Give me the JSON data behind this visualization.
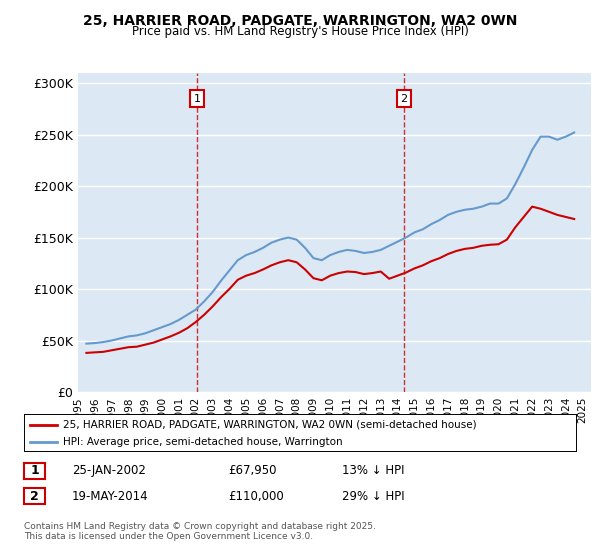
{
  "title": "25, HARRIER ROAD, PADGATE, WARRINGTON, WA2 0WN",
  "subtitle": "Price paid vs. HM Land Registry's House Price Index (HPI)",
  "ylabel": "",
  "ylim": [
    0,
    310000
  ],
  "yticks": [
    0,
    50000,
    100000,
    150000,
    200000,
    250000,
    300000
  ],
  "ytick_labels": [
    "£0",
    "£50K",
    "£100K",
    "£150K",
    "£200K",
    "£250K",
    "£300K"
  ],
  "bg_color": "#dce9f5",
  "plot_bg_color": "#dce9f5",
  "grid_color": "#ffffff",
  "line_color_red": "#cc0000",
  "line_color_blue": "#6699cc",
  "vline_color": "#cc0000",
  "marker1_year": 2002.07,
  "marker2_year": 2014.38,
  "purchase1_label": "1",
  "purchase2_label": "2",
  "legend_red": "25, HARRIER ROAD, PADGATE, WARRINGTON, WA2 0WN (semi-detached house)",
  "legend_blue": "HPI: Average price, semi-detached house, Warrington",
  "table_row1": [
    "1",
    "25-JAN-2002",
    "£67,950",
    "13% ↓ HPI"
  ],
  "table_row2": [
    "2",
    "19-MAY-2014",
    "£110,000",
    "29% ↓ HPI"
  ],
  "footer": "Contains HM Land Registry data © Crown copyright and database right 2025.\nThis data is licensed under the Open Government Licence v3.0.",
  "hpi_data": {
    "years": [
      1995.5,
      1996.0,
      1996.5,
      1997.0,
      1997.5,
      1998.0,
      1998.5,
      1999.0,
      1999.5,
      2000.0,
      2000.5,
      2001.0,
      2001.5,
      2002.0,
      2002.5,
      2003.0,
      2003.5,
      2004.0,
      2004.5,
      2005.0,
      2005.5,
      2006.0,
      2006.5,
      2007.0,
      2007.5,
      2008.0,
      2008.5,
      2009.0,
      2009.5,
      2010.0,
      2010.5,
      2011.0,
      2011.5,
      2012.0,
      2012.5,
      2013.0,
      2013.5,
      2014.0,
      2014.5,
      2015.0,
      2015.5,
      2016.0,
      2016.5,
      2017.0,
      2017.5,
      2018.0,
      2018.5,
      2019.0,
      2019.5,
      2020.0,
      2020.5,
      2021.0,
      2021.5,
      2022.0,
      2022.5,
      2023.0,
      2023.5,
      2024.0,
      2024.5
    ],
    "values": [
      47000,
      47500,
      48500,
      50000,
      52000,
      54000,
      55000,
      57000,
      60000,
      63000,
      66000,
      70000,
      75000,
      80000,
      88000,
      97000,
      108000,
      118000,
      128000,
      133000,
      136000,
      140000,
      145000,
      148000,
      150000,
      148000,
      140000,
      130000,
      128000,
      133000,
      136000,
      138000,
      137000,
      135000,
      136000,
      138000,
      142000,
      146000,
      150000,
      155000,
      158000,
      163000,
      167000,
      172000,
      175000,
      177000,
      178000,
      180000,
      183000,
      183000,
      188000,
      202000,
      218000,
      235000,
      248000,
      248000,
      245000,
      248000,
      252000
    ]
  },
  "price_data": {
    "years": [
      1995.5,
      1996.0,
      1996.5,
      1997.0,
      1997.5,
      1998.0,
      1998.5,
      1999.0,
      1999.5,
      2000.0,
      2000.5,
      2001.0,
      2001.5,
      2002.0,
      2002.5,
      2003.0,
      2003.5,
      2004.0,
      2004.5,
      2005.0,
      2005.5,
      2006.0,
      2006.5,
      2007.0,
      2007.5,
      2008.0,
      2008.5,
      2009.0,
      2009.5,
      2010.0,
      2010.5,
      2011.0,
      2011.5,
      2012.0,
      2012.5,
      2013.0,
      2013.5,
      2014.0,
      2014.5,
      2015.0,
      2015.5,
      2016.0,
      2016.5,
      2017.0,
      2017.5,
      2018.0,
      2018.5,
      2019.0,
      2019.5,
      2020.0,
      2020.5,
      2021.0,
      2021.5,
      2022.0,
      2022.5,
      2023.0,
      2023.5,
      2024.0,
      2024.5
    ],
    "values": [
      38000,
      38500,
      39000,
      40500,
      42000,
      43500,
      44000,
      46000,
      48000,
      51000,
      54000,
      57500,
      62000,
      67950,
      75000,
      83000,
      92000,
      100000,
      109000,
      113000,
      115500,
      119000,
      123000,
      126000,
      128000,
      126000,
      119000,
      110500,
      108500,
      113000,
      115500,
      117000,
      116500,
      114500,
      115500,
      117000,
      110000,
      113000,
      116000,
      120000,
      123000,
      127000,
      130000,
      134000,
      137000,
      139000,
      140000,
      142000,
      143000,
      143500,
      148000,
      160000,
      170000,
      180000,
      178000,
      175000,
      172000,
      170000,
      168000
    ]
  },
  "xtick_years": [
    1995,
    1996,
    1997,
    1998,
    1999,
    2000,
    2001,
    2002,
    2003,
    2004,
    2005,
    2006,
    2007,
    2008,
    2009,
    2010,
    2011,
    2012,
    2013,
    2014,
    2015,
    2016,
    2017,
    2018,
    2019,
    2020,
    2021,
    2022,
    2023,
    2024,
    2025
  ]
}
